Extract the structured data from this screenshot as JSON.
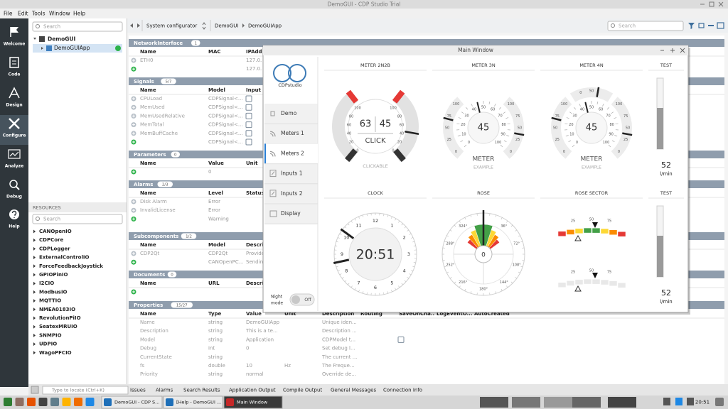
{
  "window_title": "DemoGUI - CDP Studio Trial",
  "menu": [
    "File",
    "Edit",
    "Tools",
    "Window",
    "Help"
  ],
  "modes": [
    "Welcome",
    "Code",
    "Design",
    "Configure",
    "Analyze",
    "Debug",
    "Help"
  ],
  "project": {
    "search": "Search",
    "tree": [
      "DemoGUI",
      "DemoGUIApp"
    ]
  },
  "resources": {
    "title": "RESOURCES",
    "search": "Search",
    "items": [
      "CANOpenIO",
      "CDPCore",
      "CDPLogger",
      "ExternalControlIO",
      "ForceFeedbackJoystick",
      "GPIOPinIO",
      "I2CIO",
      "ModbusIO",
      "MQTTIO",
      "NMEA0183IO",
      "RevolutionPiIO",
      "SeatexMRUIO",
      "SNMPIO",
      "UDPIO",
      "WagoPFCIO"
    ]
  },
  "toolbar": {
    "breadcrumb": [
      "System configurator",
      "DemoGUI",
      "DemoGUIApp"
    ],
    "search": "Search"
  },
  "sections_search": "Search",
  "sections": [
    {
      "title": "NetworkInterface",
      "count": "1",
      "columns": [
        "Name",
        "MAC",
        "IPAdd"
      ],
      "rows": [
        [
          "ETH0",
          null,
          "127.0."
        ],
        [
          null,
          null,
          "127.0."
        ]
      ]
    },
    {
      "title": "Signals",
      "count": "5/7",
      "columns": [
        "Name",
        "Model",
        "Input"
      ],
      "rows": [
        [
          "CPULoad",
          "CDPSignal<..."
        ],
        [
          "MemUsed",
          "CDPSignal<..."
        ],
        [
          "MemUsedRelative",
          "CDPSignal<..."
        ],
        [
          "MemTotal",
          "CDPSignal<..."
        ],
        [
          "MemBuffCache",
          "CDPSignal<..."
        ],
        [
          null,
          "CDPSignal<..."
        ]
      ]
    },
    {
      "title": "Parameters",
      "count": "0",
      "columns": [
        "Name",
        "Value",
        "Unit"
      ],
      "rows": [
        [
          null,
          "0"
        ]
      ]
    },
    {
      "title": "Alarms",
      "count": "2/3",
      "columns": [
        "Name",
        "Level",
        "Status"
      ],
      "rows": [
        [
          "Disk Alarm",
          "Error"
        ],
        [
          "InvalidLicense",
          "Error"
        ],
        [
          null,
          "Warning"
        ]
      ]
    },
    {
      "title": "Subcomponents",
      "count": "1/2",
      "columns": [
        "Name",
        "Model",
        "Descri"
      ],
      "rows": [
        [
          "CDP2Qt",
          "CDP2Qt",
          "Provide"
        ],
        [
          null,
          "CANOpenPC...",
          "Sendin"
        ]
      ]
    },
    {
      "title": "Documents",
      "count": "0",
      "columns": [
        "Name",
        "URL",
        "Descri"
      ],
      "rows": [
        [
          null
        ]
      ]
    },
    {
      "title": "Properties",
      "count": "15/27",
      "columns": [
        "Name",
        "Type",
        "Value",
        "Unit",
        "Description",
        "Routing",
        "SaveOnCha..",
        "LogEventO...",
        "AutoCreated"
      ],
      "rows": [
        [
          "Name",
          "string",
          "DemoGUIApp",
          null,
          "Unique iden..."
        ],
        [
          "Description",
          "string",
          "This is a te...",
          null,
          "Description ..."
        ],
        [
          "Model",
          "string",
          "Application",
          null,
          "CDPModel t..."
        ],
        [
          "Debug",
          "int",
          "0",
          null,
          "Set debug l..."
        ],
        [
          "CurrentState",
          "string",
          null,
          null,
          "The current ..."
        ],
        [
          "fs",
          "double",
          "10",
          "Hz",
          "The Freque..."
        ],
        [
          "Priority",
          "string",
          "normal",
          null,
          "Override de..."
        ]
      ]
    }
  ],
  "main_window": {
    "title": "Main Window",
    "logo": "CDPstudio",
    "nav": [
      "Demo",
      "Meters 1",
      "Meters 2",
      "Inputs 1",
      "Inputs 2",
      "Display"
    ],
    "night_mode": [
      "Night",
      "mode"
    ],
    "toggle": "Off",
    "panels": {
      "meter_2n2b": {
        "title": "METER 2N2B",
        "left_scale": [
          100,
          80,
          60,
          40,
          20,
          0
        ],
        "right_scale": [
          100,
          80,
          60,
          40,
          20,
          0
        ],
        "values": [
          63,
          45
        ],
        "button": "CLICK",
        "caption": "CLICKABLE"
      },
      "meter_3n": {
        "title": "METER 3N",
        "left_scale": [
          0,
          25,
          50,
          75,
          100
        ],
        "right_scale": [
          0,
          25,
          50,
          75,
          100
        ],
        "inner_scale": [
          0,
          10,
          20,
          30,
          40,
          50,
          60,
          70,
          80,
          90,
          100
        ],
        "value": 45,
        "label": "METER",
        "caption": "EXAMPLE"
      },
      "meter_4n": {
        "title": "METER 4N",
        "top_scale": [
          0,
          50
        ],
        "left_scale": [
          0,
          25,
          50,
          75,
          100
        ],
        "right_scale": [
          0,
          25,
          50,
          75,
          100
        ],
        "inner_scale": [
          0,
          10,
          20,
          30,
          40,
          50,
          60,
          70,
          80,
          90,
          100
        ],
        "value": 45,
        "label": "METER",
        "caption": "EXAMPLE"
      },
      "test_1": {
        "title": "TEST",
        "value": 52,
        "unit": "l/min"
      },
      "clock": {
        "title": "CLOCK",
        "dial": [
          1,
          2,
          3,
          4,
          5,
          6,
          7,
          8,
          9,
          10,
          11,
          12
        ],
        "time": "20:51"
      },
      "rose": {
        "title": "ROSE",
        "labels": [
          "324°",
          "36°",
          "72°",
          "108°",
          "144°",
          "180°",
          "216°",
          "252°",
          "288°"
        ],
        "value": 0
      },
      "rose_sector": {
        "title": "ROSE SECTOR",
        "scale_1": [
          25,
          50,
          75
        ],
        "scale_2": [
          25,
          50,
          75
        ]
      },
      "test_2": {
        "title": "TEST",
        "value": 52,
        "unit": "l/min"
      }
    }
  },
  "output": {
    "locate": "Type to locate (Ctrl+K)",
    "tabs": [
      "Issues",
      "Alarms",
      "Search Results",
      "Application Output",
      "Compile Output",
      "General Messages",
      "Connection Info"
    ]
  },
  "taskbar": {
    "windows": [
      "DemoGUI - CDP S...",
      "[Help - DemoGUI ...",
      "Main Window"
    ],
    "clock": "20:51"
  }
}
